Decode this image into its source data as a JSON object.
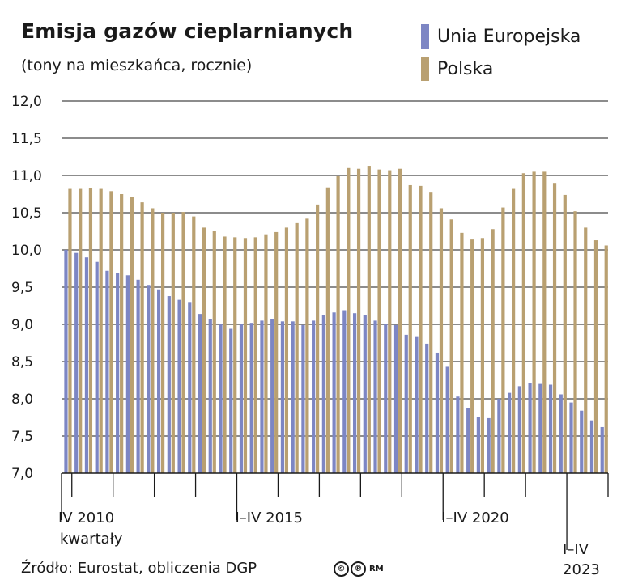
{
  "chart_data": {
    "type": "bar",
    "title": "Emisja gazów cieplarnianych",
    "subtitle": "(tony na mieszkańca, rocznie)",
    "ylim": [
      7.0,
      12.0
    ],
    "yticks": [
      "12,0",
      "11,5",
      "11,0",
      "10,5",
      "10,0",
      "9,5",
      "9,0",
      "8,5",
      "8,0",
      "7,5",
      "7,0"
    ],
    "ytick_values": [
      12.0,
      11.5,
      11.0,
      10.5,
      10.0,
      9.5,
      9.0,
      8.5,
      8.0,
      7.5,
      7.0
    ],
    "grid": true,
    "legend_position": "top-right",
    "x_axis_title": "kwartały",
    "x_labels": [
      {
        "index": 0,
        "lines": [
          "IV 2010"
        ]
      },
      {
        "index": 17,
        "lines": [
          "I–IV 2015"
        ]
      },
      {
        "index": 37,
        "lines": [
          "I–IV 2020"
        ]
      },
      {
        "index": 49,
        "lines": [
          "I–IV",
          "2023"
        ]
      }
    ],
    "series": [
      {
        "name": "Unia Europejska",
        "color": "#7d86c4",
        "values": [
          10.0,
          9.96,
          9.9,
          9.84,
          9.72,
          9.69,
          9.66,
          9.6,
          9.53,
          9.47,
          9.38,
          9.33,
          9.29,
          9.14,
          9.07,
          9.0,
          8.94,
          9.0,
          9.02,
          9.05,
          9.07,
          9.04,
          9.04,
          8.99,
          9.05,
          9.13,
          9.16,
          9.19,
          9.15,
          9.12,
          9.05,
          9.01,
          8.99,
          8.86,
          8.83,
          8.74,
          8.62,
          8.43,
          8.03,
          7.88,
          7.76,
          7.74,
          8.0,
          8.08,
          8.17,
          8.21,
          8.2,
          8.19,
          8.06,
          7.95,
          7.84,
          7.71,
          7.62
        ]
      },
      {
        "name": "Polska",
        "color": "#b9a071",
        "values": [
          10.82,
          10.82,
          10.83,
          10.82,
          10.79,
          10.75,
          10.71,
          10.64,
          10.56,
          10.5,
          10.5,
          10.51,
          10.45,
          10.3,
          10.25,
          10.18,
          10.17,
          10.16,
          10.17,
          10.21,
          10.24,
          10.3,
          10.36,
          10.42,
          10.61,
          10.84,
          11.0,
          11.1,
          11.09,
          11.13,
          11.08,
          11.07,
          11.09,
          10.87,
          10.86,
          10.77,
          10.56,
          10.41,
          10.23,
          10.14,
          10.16,
          10.28,
          10.57,
          10.82,
          11.03,
          11.05,
          11.05,
          10.9,
          10.74,
          10.52,
          10.3,
          10.13,
          10.06
        ]
      }
    ],
    "source": "Źródło: Eurostat, obliczenia DGP",
    "copyright_marks": [
      "©",
      "℗",
      "RM"
    ]
  }
}
